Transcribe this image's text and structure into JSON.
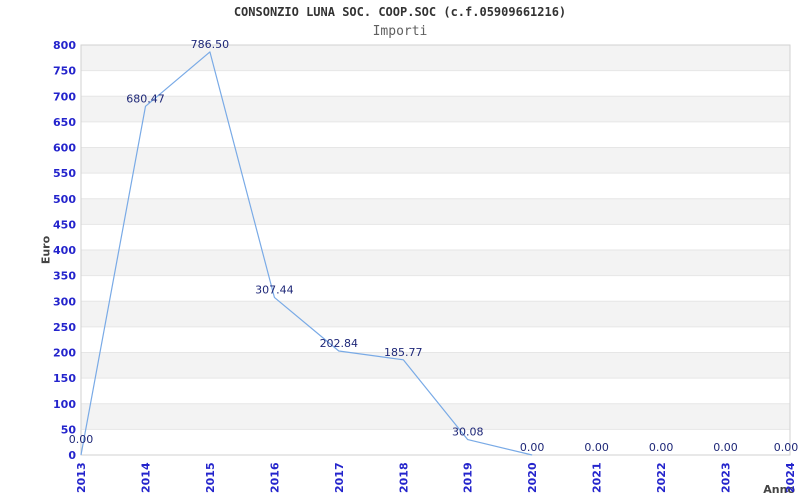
{
  "chart": {
    "title": "CONSONZIO LUNA SOC. COOP.SOC (c.f.05909661216)",
    "subtitle": "Importi",
    "y_axis_title": "Euro",
    "x_axis_title": "Anno"
  },
  "chart_data": {
    "type": "line",
    "title": "CONSONZIO LUNA SOC. COOP.SOC (c.f.05909661216)",
    "subtitle": "Importi",
    "xlabel": "Anno",
    "ylabel": "Euro",
    "x": [
      "2013",
      "2014",
      "2015",
      "2016",
      "2017",
      "2018",
      "2019",
      "2020",
      "2021",
      "2022",
      "2023",
      "2024"
    ],
    "series": [
      {
        "name": "Importi",
        "values": [
          0,
          680.47,
          786.5,
          307.44,
          202.84,
          185.77,
          30.08,
          0,
          0,
          0,
          0,
          0
        ],
        "point_labels": [
          "0.00",
          "680.47",
          "786.50",
          "307.44",
          "202.84",
          "185.77",
          "30.08",
          "0.00",
          "0.00",
          "0.00",
          "0.00",
          "0.00"
        ]
      }
    ],
    "ylim": [
      0,
      800
    ],
    "ytick_step": 50,
    "grid": "horizontal-bands-alternating",
    "legend_position": "none",
    "line_visible_through_index": 7,
    "colors": {
      "line": "#79aae6",
      "tick_label": "#2424cc",
      "point_label": "#1f2878",
      "band_fill": "#f3f3f3",
      "gridline": "#e6e6e6",
      "frame": "#d2d2d2",
      "title": "#333333",
      "subtitle": "#606060",
      "axis_title": "#444444",
      "background": "#ffffff"
    }
  }
}
